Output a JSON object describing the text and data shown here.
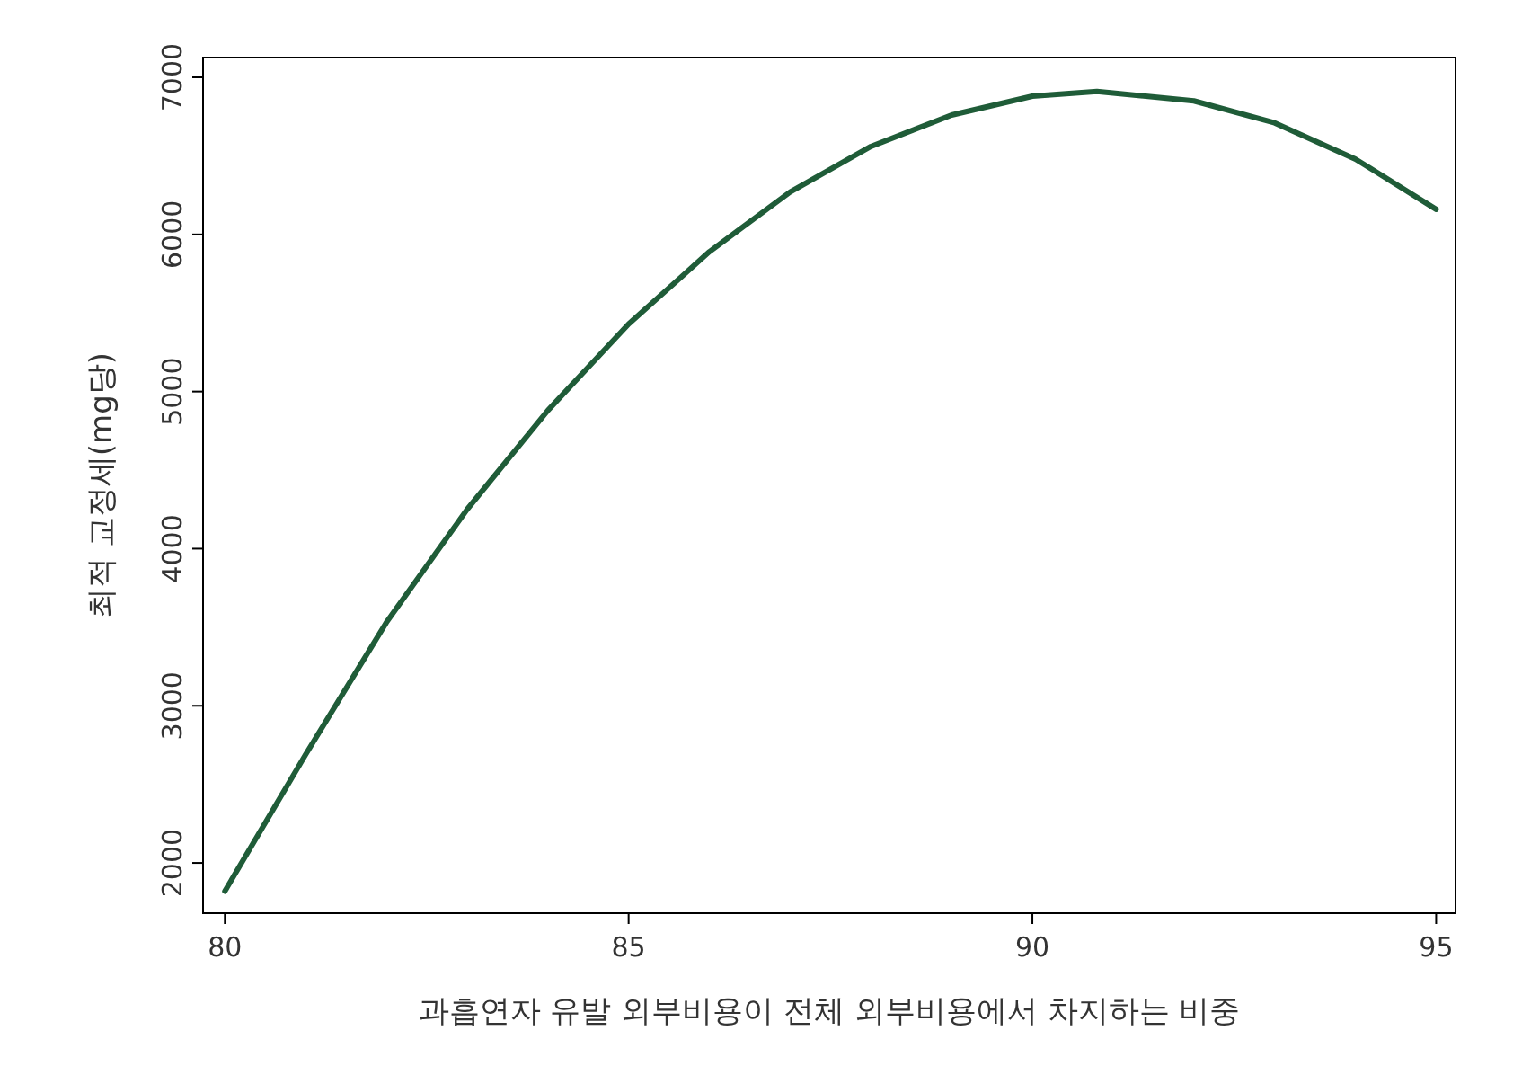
{
  "chart_data": {
    "type": "line",
    "xlabel": "과흡연자 유발 외부비용이 전체 외부비용에서 차지하는 비중",
    "ylabel": "최적 교정세(mg당)",
    "x": [
      80,
      81,
      82,
      83,
      84,
      85,
      86,
      87,
      88,
      89,
      90,
      90.8,
      91,
      92,
      93,
      94,
      95
    ],
    "series": [
      {
        "color": "#1f5c38",
        "values": [
          1820,
          2690,
          3530,
          4250,
          4880,
          5430,
          5890,
          6270,
          6560,
          6760,
          6880,
          6910,
          6900,
          6850,
          6710,
          6480,
          6160
        ]
      }
    ],
    "xlim": [
      79.73,
      95.24
    ],
    "xticks": [
      80,
      85,
      90,
      95
    ],
    "ylim": [
      1680,
      7126
    ],
    "yticks": [
      2000,
      3000,
      4000,
      5000,
      6000,
      7000
    ],
    "grid": false,
    "marker": "none",
    "line_style": "solid"
  }
}
